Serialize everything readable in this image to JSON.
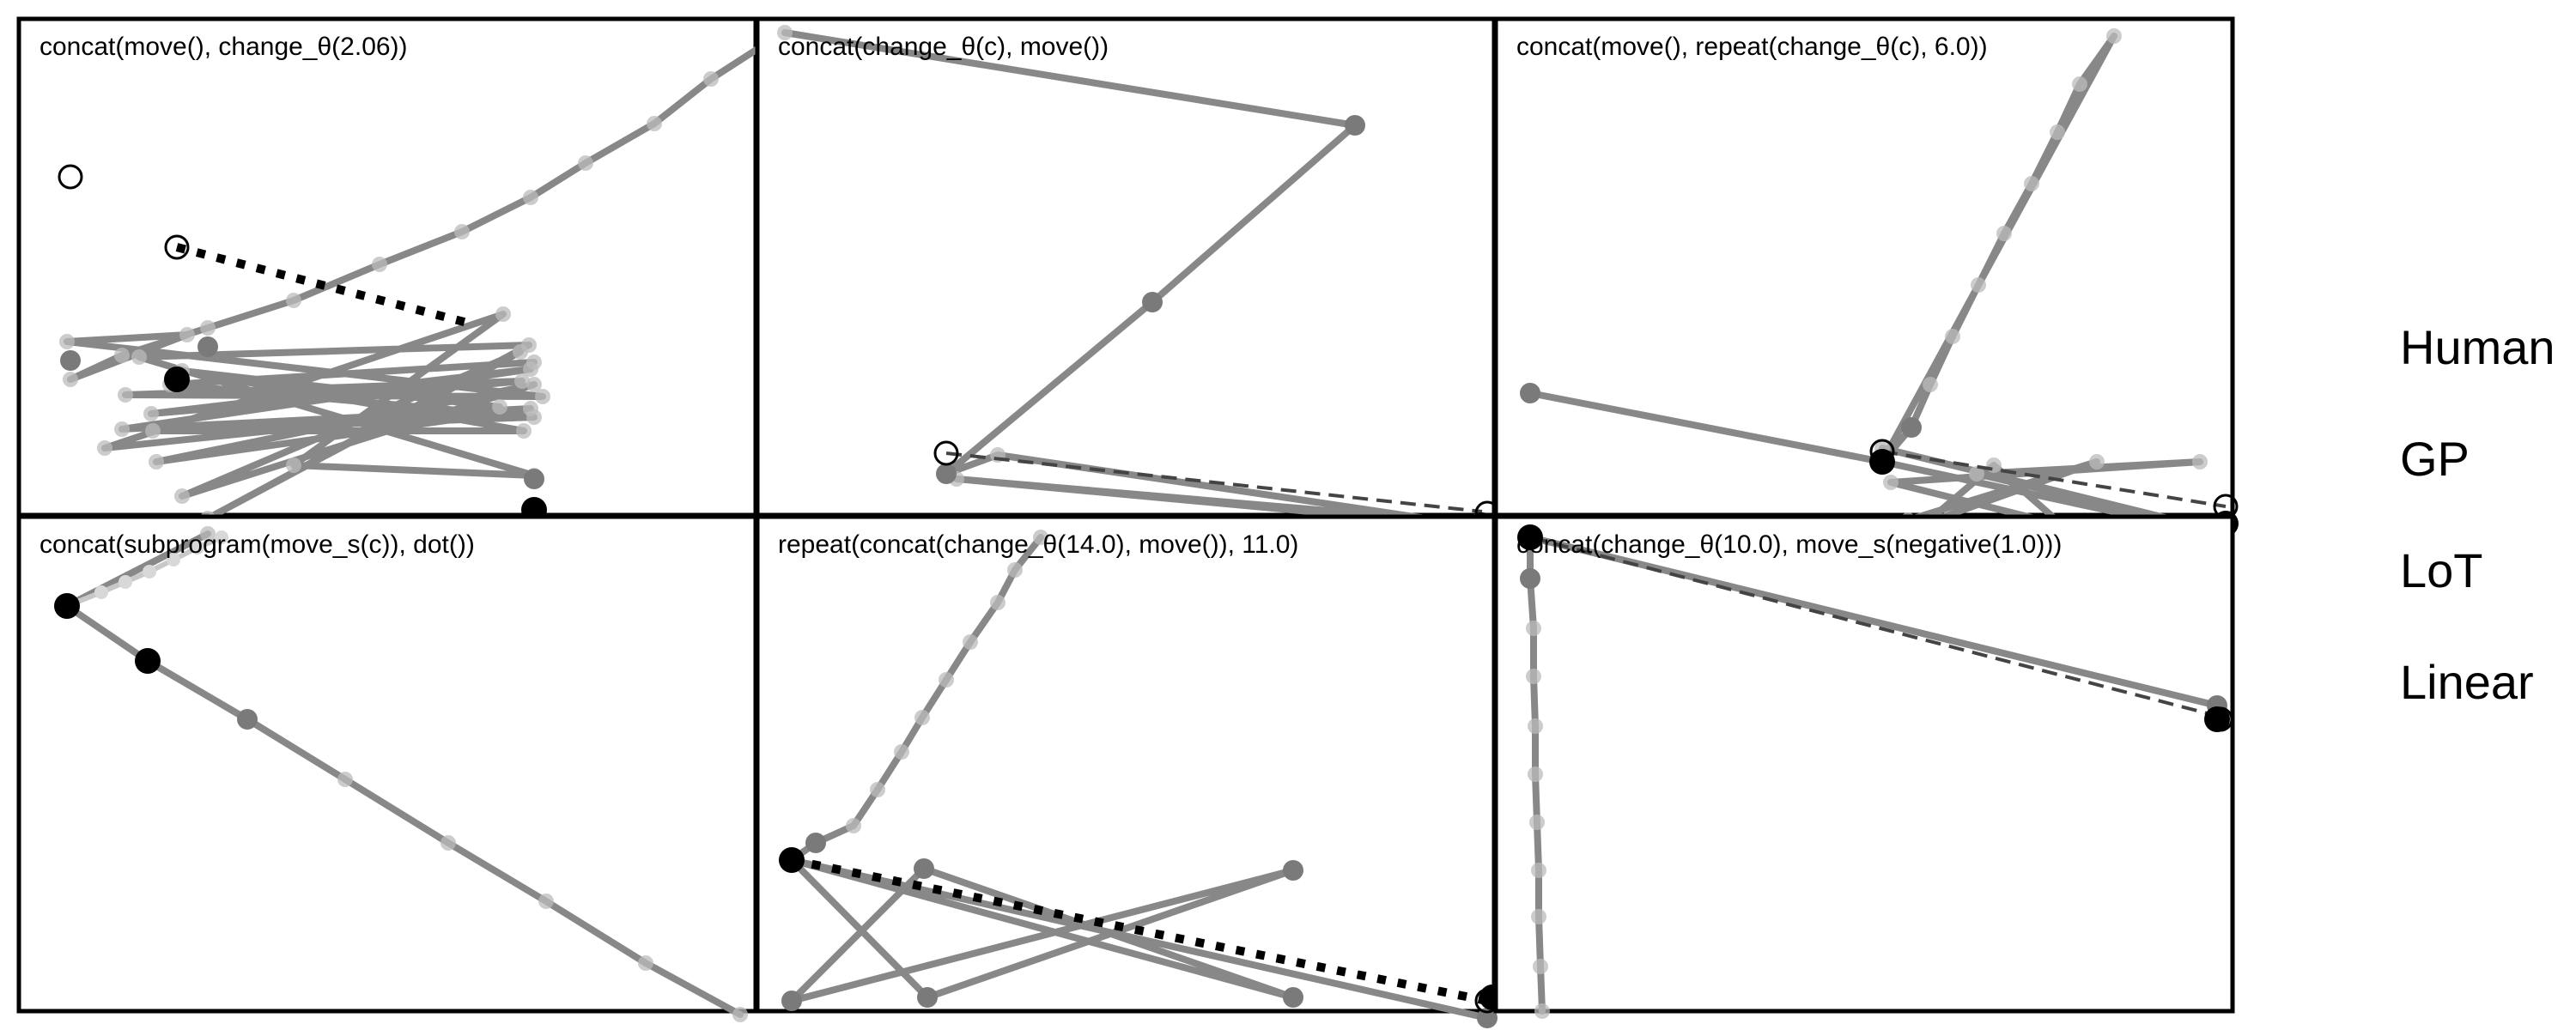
{
  "legend": {
    "items": [
      {
        "label": "Human"
      },
      {
        "label": "GP"
      },
      {
        "label": "LoT"
      },
      {
        "label": "Linear"
      }
    ]
  },
  "panels": [
    {
      "title": "concat(move(), change_θ(2.06))",
      "human": [
        [
          30,
          92
        ],
        [
          92,
          133
        ]
      ],
      "dotted": [
        [
          92,
          133
        ],
        [
          265,
          178
        ]
      ],
      "trace": [
        [
          448,
          6
        ],
        [
          403,
          35
        ],
        [
          370,
          61
        ],
        [
          330,
          84
        ],
        [
          298,
          104
        ],
        [
          258,
          124
        ],
        [
          210,
          143
        ],
        [
          160,
          164
        ],
        [
          110,
          180
        ],
        [
          60,
          196
        ],
        [
          30,
          210
        ],
        [
          98,
          184
        ],
        [
          28,
          188
        ],
        [
          305,
          220
        ],
        [
          62,
          219
        ],
        [
          293,
          211
        ],
        [
          77,
          230
        ],
        [
          298,
          204
        ],
        [
          60,
          239
        ],
        [
          298,
          227
        ],
        [
          80,
          258
        ],
        [
          300,
          213
        ],
        [
          95,
          278
        ],
        [
          292,
          194
        ],
        [
          110,
          291
        ],
        [
          297,
          190
        ],
        [
          70,
          197
        ],
        [
          300,
          266
        ],
        [
          160,
          260
        ],
        [
          282,
          172
        ],
        [
          50,
          250
        ],
        [
          280,
          226
        ],
        [
          95,
          205
        ],
        [
          294,
          240
        ],
        [
          78,
          240
        ],
        [
          300,
          232
        ],
        [
          88,
          213
        ],
        [
          300,
          200
        ]
      ],
      "big_points": [
        [
          30,
          199
        ],
        [
          110,
          191
        ],
        [
          300,
          268
        ]
      ],
      "black_points": [
        [
          92,
          210
        ],
        [
          300,
          286
        ]
      ]
    },
    {
      "title": "concat(change_θ(c), move())",
      "human": [
        [
          110,
          253
        ],
        [
          425,
          288
        ]
      ],
      "dashed": [
        [
          110,
          253
        ],
        [
          422,
          287
        ]
      ],
      "trace": [
        [
          16,
          8
        ],
        [
          348,
          62
        ],
        [
          230,
          165
        ],
        [
          110,
          265
        ],
        [
          140,
          254
        ],
        [
          430,
          297
        ],
        [
          116,
          268
        ],
        [
          420,
          294
        ]
      ],
      "big_points": [
        [
          348,
          62
        ],
        [
          230,
          165
        ],
        [
          110,
          265
        ],
        [
          420,
          294
        ]
      ],
      "black_points": [
        [
          422,
          295
        ]
      ]
    },
    {
      "title": "concat(move(), repeat(change_θ(c), 6.0))",
      "human": [
        [
          225,
          252
        ],
        [
          425,
          284
        ]
      ],
      "dashed": [
        [
          225,
          252
        ],
        [
          425,
          284
        ]
      ],
      "trace": [
        [
          20,
          218
        ],
        [
          225,
          258
        ],
        [
          242,
          238
        ],
        [
          253,
          213
        ],
        [
          266,
          185
        ],
        [
          281,
          155
        ],
        [
          296,
          125
        ],
        [
          312,
          96
        ],
        [
          327,
          66
        ],
        [
          340,
          38
        ],
        [
          360,
          10
        ],
        [
          225,
          258
        ],
        [
          420,
          300
        ],
        [
          240,
          292
        ],
        [
          350,
          258
        ],
        [
          250,
          294
        ],
        [
          290,
          260
        ],
        [
          330,
          295
        ],
        [
          230,
          270
        ],
        [
          410,
          258
        ],
        [
          280,
          265
        ],
        [
          420,
          298
        ],
        [
          225,
          250
        ]
      ],
      "big_points": [
        [
          20,
          218
        ],
        [
          242,
          238
        ],
        [
          250,
          294
        ],
        [
          420,
          300
        ],
        [
          225,
          258
        ]
      ],
      "black_points": [
        [
          225,
          258
        ],
        [
          425,
          294
        ]
      ]
    },
    {
      "title": "concat(subprogram(move_s(c)), dot())",
      "human": [
        [
          28,
          52
        ],
        [
          75,
          84
        ]
      ],
      "trace": [
        [
          110,
          10
        ],
        [
          28,
          52
        ],
        [
          75,
          84
        ],
        [
          133,
          118
        ],
        [
          190,
          153
        ],
        [
          250,
          190
        ],
        [
          307,
          224
        ],
        [
          365,
          260
        ],
        [
          420,
          290
        ]
      ],
      "big_points": [
        [
          28,
          52
        ],
        [
          75,
          84
        ],
        [
          133,
          118
        ]
      ],
      "black_points": [
        [
          28,
          52
        ],
        [
          75,
          84
        ]
      ],
      "faint_chain": [
        [
          28,
          52
        ],
        [
          48,
          44
        ],
        [
          62,
          38
        ],
        [
          76,
          32
        ],
        [
          90,
          25
        ],
        [
          104,
          18
        ],
        [
          118,
          12
        ]
      ]
    },
    {
      "title": "repeat(concat(change_θ(14.0), move()), 11.0)",
      "human": [
        [
          20,
          200
        ],
        [
          425,
          282
        ]
      ],
      "dotted": [
        [
          20,
          200
        ],
        [
          425,
          282
        ]
      ],
      "trace": [
        [
          165,
          12
        ],
        [
          150,
          31
        ],
        [
          140,
          50
        ],
        [
          124,
          73
        ],
        [
          110,
          95
        ],
        [
          96,
          117
        ],
        [
          84,
          137
        ],
        [
          70,
          159
        ],
        [
          56,
          180
        ],
        [
          34,
          190
        ],
        [
          20,
          200
        ],
        [
          425,
          292
        ],
        [
          20,
          200
        ],
        [
          99,
          280
        ],
        [
          312,
          206
        ],
        [
          20,
          282
        ],
        [
          97,
          205
        ],
        [
          312,
          280
        ],
        [
          20,
          200
        ]
      ],
      "big_points": [
        [
          34,
          190
        ],
        [
          20,
          200
        ],
        [
          99,
          280
        ],
        [
          312,
          206
        ],
        [
          20,
          282
        ],
        [
          97,
          205
        ],
        [
          312,
          280
        ],
        [
          425,
          292
        ]
      ],
      "black_points": [
        [
          20,
          200
        ],
        [
          428,
          280
        ]
      ]
    },
    {
      "title": "concat(change_θ(10.0), move_s(negative(1.0)))",
      "human": [
        [
          20,
          12
        ],
        [
          422,
          118
        ]
      ],
      "dashed": [
        [
          20,
          12
        ],
        [
          420,
          116
        ]
      ],
      "trace": [
        [
          20,
          12
        ],
        [
          420,
          110
        ],
        [
          20,
          12
        ],
        [
          20,
          36
        ],
        [
          22,
          65
        ],
        [
          22,
          93
        ],
        [
          23,
          122
        ],
        [
          23,
          150
        ],
        [
          24,
          178
        ],
        [
          25,
          206
        ],
        [
          25,
          233
        ],
        [
          26,
          262
        ],
        [
          27,
          288
        ]
      ],
      "big_points": [
        [
          20,
          12
        ],
        [
          20,
          36
        ],
        [
          420,
          110
        ]
      ],
      "black_points": [
        [
          20,
          12
        ],
        [
          420,
          118
        ]
      ]
    }
  ]
}
